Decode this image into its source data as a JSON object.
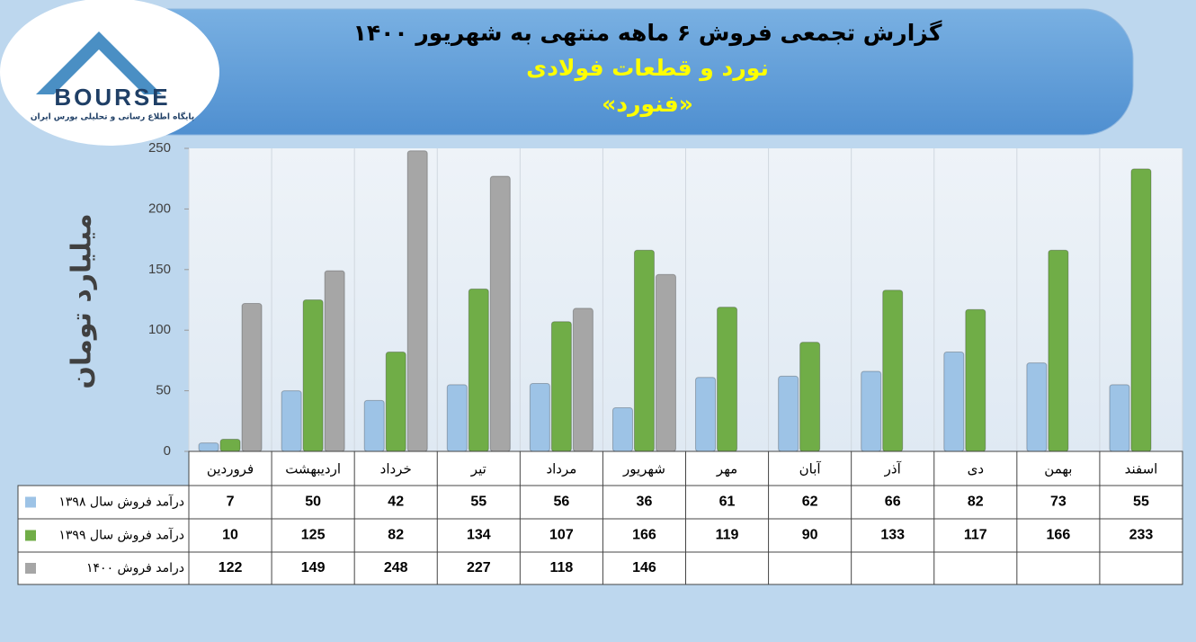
{
  "logo": {
    "text": "BOURSE",
    "subtitle": "پایگاه اطلاع رسانی و تحلیلی بورس ایران"
  },
  "chart_data": {
    "type": "bar",
    "title": "گزارش تجمعی فروش ۶ ماهه منتهی به شهریور ۱۴۰۰",
    "subtitle": "نورد و قطعات فولادی",
    "symbol": "«فنورد»",
    "y_label": "میلیارد تومان",
    "categories": [
      "فروردین",
      "اردیبهشت",
      "خرداد",
      "تیر",
      "مرداد",
      "شهریور",
      "مهر",
      "آبان",
      "آذر",
      "دی",
      "بهمن",
      "اسفند"
    ],
    "series": [
      {
        "name": "درآمد فروش سال ۱۳۹۸",
        "color": "#9dc3e6",
        "values": [
          7,
          50,
          42,
          55,
          56,
          36,
          61,
          62,
          66,
          82,
          73,
          55
        ]
      },
      {
        "name": "درآمد فروش سال ۱۳۹۹",
        "color": "#70ad47",
        "values": [
          10,
          125,
          82,
          134,
          107,
          166,
          119,
          90,
          133,
          117,
          166,
          233
        ]
      },
      {
        "name": "درامد فروش ۱۴۰۰",
        "color": "#a6a6a6",
        "values": [
          122,
          149,
          248,
          227,
          118,
          146,
          null,
          null,
          null,
          null,
          null,
          null
        ]
      }
    ],
    "ylim": [
      0,
      250
    ],
    "yticks": [
      0,
      50,
      100,
      150,
      200,
      250
    ]
  }
}
